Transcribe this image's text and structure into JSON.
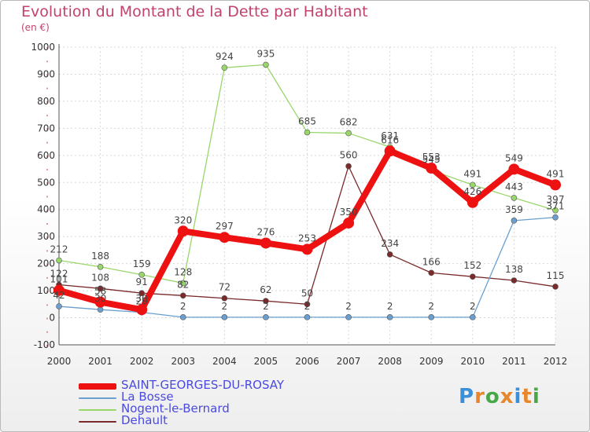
{
  "logo": {
    "text": "Proxiti",
    "colors": [
      "#3a8fd8",
      "#e8862b",
      "#48a848",
      "#e8862b",
      "#3a8fd8",
      "#e8862b",
      "#48a848"
    ]
  },
  "chart_data": {
    "type": "line",
    "title": "Evolution du Montant de la Dette par Habitant",
    "subtitle": "(en €)",
    "xlabel": "",
    "ylabel": "",
    "ylim": [
      -100,
      1000
    ],
    "yticks": [
      -100,
      0,
      100,
      200,
      300,
      400,
      500,
      600,
      700,
      800,
      900,
      1000
    ],
    "x": [
      "2000",
      "2001",
      "2002",
      "2003",
      "2004",
      "2005",
      "2006",
      "2007",
      "2008",
      "2009",
      "2010",
      "2011",
      "2012"
    ],
    "grid": true,
    "legend_position": "bottom-left",
    "series": [
      {
        "name": "Dehault",
        "color": "#7a2a2a",
        "width": 1.3,
        "marker": 3.5,
        "values": [
          122,
          108,
          91,
          82,
          72,
          62,
          50,
          560,
          234,
          166,
          152,
          138,
          115
        ]
      },
      {
        "name": "Nogent-le-Bernard",
        "color": "#99d66b",
        "width": 1.3,
        "marker": 3.5,
        "values": [
          212,
          188,
          159,
          128,
          924,
          935,
          685,
          682,
          631,
          545,
          491,
          443,
          397
        ]
      },
      {
        "name": "La Bosse",
        "color": "#6a9fcf",
        "width": 1.3,
        "marker": 3.5,
        "values": [
          42,
          30,
          20,
          2,
          2,
          2,
          2,
          2,
          2,
          2,
          2,
          359,
          371
        ]
      },
      {
        "name": "SAINT-GEORGES-DU-ROSAY",
        "color": "#ee1111",
        "width": 8,
        "marker": 7,
        "values": [
          101,
          58,
          30,
          320,
          297,
          276,
          253,
          350,
          616,
          553,
          426,
          549,
          491
        ]
      }
    ],
    "legend_order": [
      "SAINT-GEORGES-DU-ROSAY",
      "La Bosse",
      "Nogent-le-Bernard",
      "Dehault"
    ]
  }
}
